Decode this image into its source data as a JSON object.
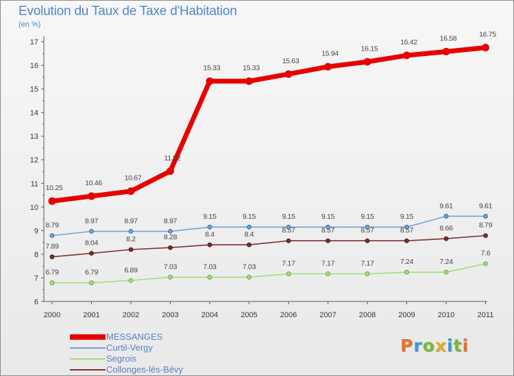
{
  "title": "Evolution du Taux de Taxe d'Habitation",
  "subtitle": "(en %)",
  "brand": {
    "letters": [
      "P",
      "r",
      "o",
      "x",
      "i",
      "t",
      "i"
    ],
    "colors": [
      "#e8722b",
      "#3c9ad6",
      "#77b83c",
      "#e3ac1f",
      "#3c9ad6",
      "#77b83c",
      "#e8722b"
    ]
  },
  "chart_data": {
    "type": "line",
    "x": [
      "2000",
      "2001",
      "2002",
      "2003",
      "2004",
      "2005",
      "2006",
      "2007",
      "2008",
      "2009",
      "2010",
      "2011"
    ],
    "y_ticks": [
      "6",
      "7",
      "8",
      "9",
      "10",
      "11",
      "12",
      "13",
      "14",
      "15",
      "16",
      "17"
    ],
    "ylim": [
      6,
      17
    ],
    "grid": false,
    "legend_position": "bottom-left",
    "series": [
      {
        "name": "MESSANGES",
        "color": "#e60000",
        "values": [
          10.25,
          10.46,
          10.67,
          11.52,
          15.33,
          15.33,
          15.63,
          15.94,
          16.15,
          16.42,
          16.58,
          16.75
        ],
        "labels": [
          "10.25",
          "10.46",
          "10.67",
          "11.52",
          "15.33",
          "15.33",
          "15.63",
          "15.94",
          "16.15",
          "16.42",
          "16.58",
          "16.75"
        ]
      },
      {
        "name": "Curtil-Vergy",
        "color": "#6fa3d6",
        "values": [
          8.79,
          8.97,
          8.97,
          8.97,
          9.15,
          9.15,
          9.15,
          9.15,
          9.15,
          9.15,
          9.61,
          9.61
        ],
        "labels": [
          "8.79",
          "8.97",
          "8.97",
          "8.97",
          "9.15",
          "9.15",
          "9.15",
          "9.15",
          "9.15",
          "9.15",
          "9.61",
          "9.61"
        ]
      },
      {
        "name": "Segrois",
        "color": "#a6dc7a",
        "values": [
          6.79,
          6.79,
          6.89,
          7.03,
          7.03,
          7.03,
          7.17,
          7.17,
          7.17,
          7.24,
          7.24,
          7.6
        ],
        "labels": [
          "6.79",
          "6.79",
          "6.89",
          "7.03",
          "7.03",
          "7.03",
          "7.17",
          "7.17",
          "7.17",
          "7.24",
          "7.24",
          "7.6"
        ]
      },
      {
        "name": "Collonges-lès-Bévy",
        "color": "#7a2f2f",
        "values": [
          7.89,
          8.04,
          8.2,
          8.28,
          8.4,
          8.4,
          8.57,
          8.57,
          8.57,
          8.57,
          8.66,
          8.79
        ],
        "labels": [
          "7.89",
          "8.04",
          "8.2",
          "8.28",
          "8.4",
          "8.4",
          "8.57",
          "8.57",
          "8.57",
          "8.57",
          "8.66",
          "8.79"
        ]
      }
    ]
  }
}
